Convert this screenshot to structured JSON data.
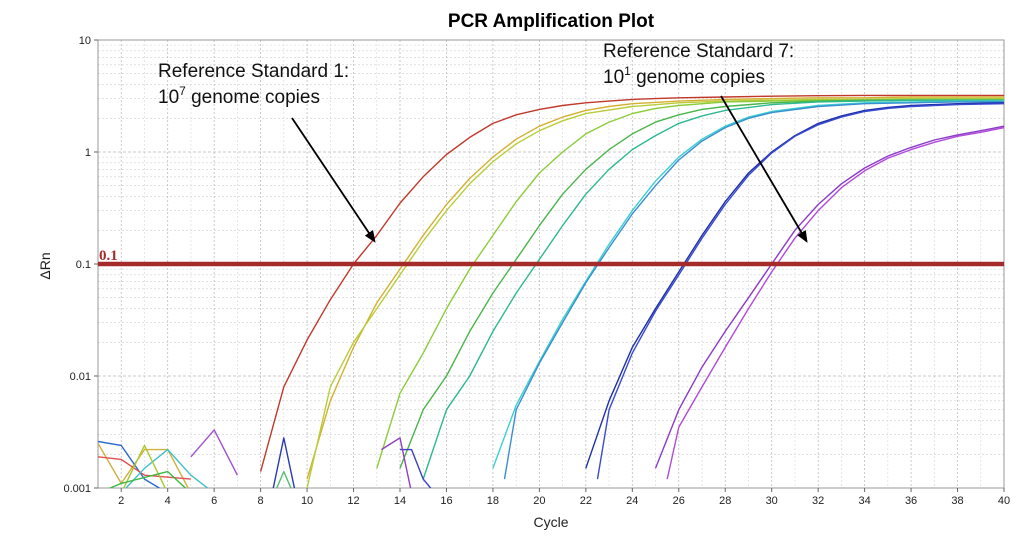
{
  "chart_data": {
    "type": "line",
    "title": "PCR Amplification Plot",
    "xlabel": "Cycle",
    "ylabel": "ΔRn",
    "xlim": [
      1,
      40
    ],
    "ylim": [
      0.001,
      10
    ],
    "y_scale": "log",
    "grid": true,
    "legend": "none",
    "x_tick_labels": [
      "2",
      "4",
      "6",
      "8",
      "10",
      "12",
      "14",
      "16",
      "18",
      "20",
      "22",
      "24",
      "26",
      "28",
      "30",
      "32",
      "34",
      "36",
      "38",
      "40"
    ],
    "y_tick_labels": [
      "0.001",
      "0.01",
      "0.1",
      "1",
      "10"
    ],
    "threshold": {
      "value": 0.1,
      "label": "0.1",
      "color": "#a52a2a"
    },
    "annotations": [
      {
        "line1": "Reference Standard 1:",
        "line2_base": "10",
        "line2_sup": "7",
        "line2_rest": " genome copies",
        "arrow_to": [
          12.9,
          0.16
        ]
      },
      {
        "line1": "Reference Standard 7:",
        "line2_base": "10",
        "line2_sup": "1",
        "line2_rest": " genome copies",
        "arrow_to": [
          31.5,
          0.16
        ]
      }
    ],
    "series": [
      {
        "color": "#c0392b",
        "x": [
          8,
          9,
          10,
          11,
          12,
          13,
          14,
          15,
          16,
          17,
          18,
          19,
          20,
          21,
          22,
          23,
          24,
          25,
          26,
          28,
          30,
          32,
          34,
          36,
          38,
          40
        ],
        "y": [
          0.0014,
          0.008,
          0.021,
          0.048,
          0.1,
          0.18,
          0.35,
          0.6,
          0.95,
          1.35,
          1.8,
          2.15,
          2.4,
          2.6,
          2.75,
          2.85,
          2.95,
          3.0,
          3.05,
          3.1,
          3.15,
          3.18,
          3.2,
          3.2,
          3.2,
          3.2
        ]
      },
      {
        "color": "#d4b030",
        "x": [
          10,
          11,
          12,
          13,
          14,
          15,
          16,
          17,
          18,
          19,
          20,
          21,
          22,
          23,
          24,
          26,
          28,
          30,
          32,
          34,
          36,
          38,
          40
        ],
        "y": [
          0.0012,
          0.006,
          0.018,
          0.045,
          0.09,
          0.18,
          0.34,
          0.58,
          0.9,
          1.3,
          1.7,
          2.05,
          2.35,
          2.55,
          2.7,
          2.85,
          2.95,
          3.0,
          3.05,
          3.05,
          3.1,
          3.1,
          3.1
        ]
      },
      {
        "color": "#b9cc3a",
        "x": [
          10,
          11,
          12,
          13,
          14,
          15,
          16,
          17,
          18,
          19,
          20,
          21,
          22,
          24,
          26,
          28,
          30,
          32,
          34,
          36,
          38,
          40
        ],
        "y": [
          0.001,
          0.008,
          0.02,
          0.04,
          0.08,
          0.16,
          0.3,
          0.52,
          0.82,
          1.18,
          1.55,
          1.9,
          2.2,
          2.55,
          2.75,
          2.85,
          2.9,
          2.95,
          2.95,
          3.0,
          3.0,
          3.0
        ]
      },
      {
        "color": "#8ccc3a",
        "x": [
          13,
          14,
          15,
          16,
          17,
          18,
          19,
          20,
          21,
          22,
          23,
          24,
          25,
          26,
          28,
          30,
          32,
          34,
          36,
          38,
          40
        ],
        "y": [
          0.0015,
          0.007,
          0.016,
          0.04,
          0.09,
          0.18,
          0.36,
          0.65,
          1.0,
          1.45,
          1.85,
          2.2,
          2.45,
          2.6,
          2.8,
          2.85,
          2.9,
          2.9,
          2.95,
          2.95,
          2.95
        ]
      },
      {
        "color": "#4ab54a",
        "x": [
          14,
          15,
          16,
          17,
          18,
          19,
          20,
          21,
          22,
          23,
          24,
          25,
          26,
          27,
          28,
          30,
          32,
          34,
          36,
          38,
          40
        ],
        "y": [
          0.0015,
          0.005,
          0.01,
          0.025,
          0.055,
          0.11,
          0.22,
          0.42,
          0.7,
          1.05,
          1.45,
          1.85,
          2.15,
          2.4,
          2.55,
          2.75,
          2.85,
          2.9,
          2.9,
          2.9,
          2.9
        ]
      },
      {
        "color": "#2cb890",
        "x": [
          15,
          16,
          17,
          18,
          19,
          20,
          21,
          22,
          23,
          24,
          25,
          26,
          27,
          28,
          30,
          32,
          34,
          36,
          38,
          40
        ],
        "y": [
          0.0012,
          0.005,
          0.01,
          0.025,
          0.055,
          0.11,
          0.22,
          0.42,
          0.7,
          1.05,
          1.4,
          1.8,
          2.1,
          2.35,
          2.65,
          2.8,
          2.85,
          2.9,
          2.9,
          2.9
        ]
      },
      {
        "color": "#3ccfcf",
        "x": [
          18,
          19,
          20,
          21,
          22,
          23,
          24,
          25,
          26,
          27,
          28,
          29,
          30,
          32,
          34,
          36,
          38,
          40
        ],
        "y": [
          0.0015,
          0.0055,
          0.0135,
          0.032,
          0.07,
          0.15,
          0.3,
          0.55,
          0.9,
          1.3,
          1.7,
          2.05,
          2.3,
          2.6,
          2.75,
          2.8,
          2.85,
          2.85
        ]
      },
      {
        "color": "#3a8fd0",
        "x": [
          18.5,
          19,
          20,
          21,
          22,
          23,
          24,
          25,
          26,
          27,
          28,
          29,
          30,
          32,
          34,
          36,
          38,
          40
        ],
        "y": [
          0.0012,
          0.005,
          0.013,
          0.03,
          0.068,
          0.14,
          0.28,
          0.5,
          0.85,
          1.25,
          1.65,
          2.0,
          2.25,
          2.55,
          2.7,
          2.75,
          2.8,
          2.8
        ]
      },
      {
        "color": "#1c2fa8",
        "x": [
          22,
          23,
          24,
          25,
          26,
          27,
          28,
          29,
          30,
          31,
          32,
          33,
          34,
          35,
          36,
          38,
          40
        ],
        "y": [
          0.0015,
          0.006,
          0.018,
          0.04,
          0.085,
          0.18,
          0.36,
          0.65,
          1.0,
          1.4,
          1.8,
          2.1,
          2.35,
          2.5,
          2.6,
          2.7,
          2.75
        ]
      },
      {
        "color": "#3a4ad0",
        "x": [
          22.5,
          23,
          24,
          25,
          26,
          27,
          28,
          29,
          30,
          31,
          32,
          33,
          34,
          35,
          36,
          38,
          40
        ],
        "y": [
          0.0012,
          0.005,
          0.016,
          0.038,
          0.08,
          0.17,
          0.34,
          0.62,
          0.98,
          1.38,
          1.75,
          2.05,
          2.3,
          2.45,
          2.55,
          2.65,
          2.7
        ]
      },
      {
        "color": "#8a3ac8",
        "x": [
          25,
          26,
          27,
          28,
          29,
          30,
          31,
          32,
          33,
          34,
          35,
          36,
          37,
          38,
          39,
          40
        ],
        "y": [
          0.0015,
          0.005,
          0.012,
          0.025,
          0.05,
          0.1,
          0.2,
          0.34,
          0.52,
          0.72,
          0.92,
          1.1,
          1.28,
          1.42,
          1.55,
          1.7
        ]
      },
      {
        "color": "#b04ad8",
        "x": [
          25.5,
          26,
          27,
          28,
          29,
          30,
          31,
          32,
          33,
          34,
          35,
          36,
          37,
          38,
          39,
          40
        ],
        "y": [
          0.0012,
          0.0035,
          0.008,
          0.018,
          0.04,
          0.085,
          0.17,
          0.3,
          0.48,
          0.68,
          0.88,
          1.05,
          1.22,
          1.38,
          1.5,
          1.65
        ]
      },
      {
        "color": "#d0b040",
        "x": [
          1,
          2,
          3,
          4,
          5
        ],
        "y": [
          0.0025,
          0.0011,
          0.0022,
          0.0022,
          0.0009
        ]
      },
      {
        "color": "#2a6ad0",
        "x": [
          1,
          2,
          3,
          4
        ],
        "y": [
          0.0026,
          0.0024,
          0.0012,
          0.0009
        ]
      },
      {
        "color": "#e05050",
        "x": [
          1,
          2,
          3,
          5
        ],
        "y": [
          0.0019,
          0.0018,
          0.0013,
          0.0012
        ]
      },
      {
        "color": "#40c0c8",
        "x": [
          2,
          3,
          4,
          5,
          6
        ],
        "y": [
          0.0009,
          0.0015,
          0.0022,
          0.0013,
          0.0009
        ]
      },
      {
        "color": "#a050d0",
        "x": [
          5,
          6,
          7
        ],
        "y": [
          0.0019,
          0.0033,
          0.0013
        ]
      },
      {
        "color": "#a8c830",
        "x": [
          2,
          3,
          4
        ],
        "y": [
          0.0009,
          0.0024,
          0.0009
        ]
      },
      {
        "color": "#3cb840",
        "x": [
          1,
          2,
          4,
          5
        ],
        "y": [
          0.0009,
          0.0011,
          0.0014,
          0.0009
        ]
      },
      {
        "color": "#2a3ab0",
        "x": [
          8.5,
          9,
          9.5
        ],
        "y": [
          0.0009,
          0.0028,
          0.0009
        ]
      },
      {
        "color": "#50c070",
        "x": [
          8.6,
          9,
          9.4
        ],
        "y": [
          0.0009,
          0.0014,
          0.0009
        ]
      },
      {
        "color": "#3a40c0",
        "x": [
          14,
          14.5,
          15,
          15.5
        ],
        "y": [
          0.0022,
          0.0022,
          0.0012,
          0.0009
        ]
      },
      {
        "color": "#9040c0",
        "x": [
          13.2,
          14,
          14.5,
          15
        ],
        "y": [
          0.0022,
          0.0028,
          0.0009,
          0.0009
        ]
      }
    ]
  }
}
